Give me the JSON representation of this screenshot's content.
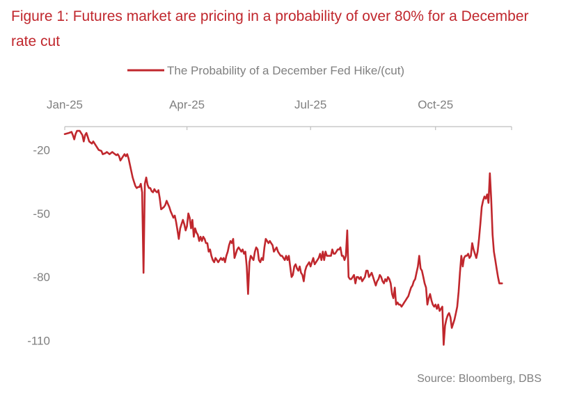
{
  "figure": {
    "title": "Figure 1: Futures market are pricing in a probability of over 80% for a December rate cut",
    "source": "Source: Bloomberg, DBS"
  },
  "colors": {
    "title": "#c0272d",
    "line": "#c0272d",
    "axis": "#bfbfbf",
    "label": "#7f7f7f"
  },
  "chart_data": {
    "type": "line",
    "title": "Figure 1: Futures market are pricing in a probability of over 80% for a December rate cut",
    "xlabel": "",
    "ylabel": "",
    "x_axis_position": "top",
    "x_ticks": [
      {
        "label": "Jan-25",
        "day": 0
      },
      {
        "label": "Apr-25",
        "day": 90
      },
      {
        "label": "Jul-25",
        "day": 181
      },
      {
        "label": "Oct-25",
        "day": 273
      }
    ],
    "xlim": [
      0,
      329
    ],
    "y_ticks": [
      -20,
      -50,
      -80,
      -110
    ],
    "ylim": [
      -120,
      -9
    ],
    "grid": false,
    "legend": "top-center",
    "series": [
      {
        "name": "The Probability of a December Fed Hike/(cut)",
        "points": [
          [
            0,
            -12.5
          ],
          [
            3,
            -12
          ],
          [
            5,
            -11.5
          ],
          [
            6,
            -13
          ],
          [
            7,
            -15
          ],
          [
            8,
            -12.5
          ],
          [
            9,
            -11
          ],
          [
            11,
            -11
          ],
          [
            13,
            -13
          ],
          [
            14,
            -16
          ],
          [
            15,
            -13
          ],
          [
            16,
            -12
          ],
          [
            17,
            -14
          ],
          [
            18,
            -16
          ],
          [
            20,
            -17
          ],
          [
            21,
            -16
          ],
          [
            23,
            -18
          ],
          [
            25,
            -20
          ],
          [
            27,
            -20.5
          ],
          [
            28,
            -22
          ],
          [
            30,
            -21.5
          ],
          [
            31,
            -21
          ],
          [
            33,
            -22
          ],
          [
            35,
            -21
          ],
          [
            37,
            -22
          ],
          [
            38,
            -22.5
          ],
          [
            39,
            -22
          ],
          [
            40,
            -23
          ],
          [
            41,
            -25
          ],
          [
            43,
            -23
          ],
          [
            44,
            -22
          ],
          [
            45,
            -23
          ],
          [
            46,
            -22
          ],
          [
            47,
            -24
          ],
          [
            49,
            -30
          ],
          [
            50,
            -33
          ],
          [
            51,
            -35
          ],
          [
            52,
            -37
          ],
          [
            53,
            -38
          ],
          [
            54,
            -37.5
          ],
          [
            55,
            -37.5
          ],
          [
            56,
            -36
          ],
          [
            57,
            -40
          ],
          [
            58,
            -78
          ],
          [
            59,
            -36
          ],
          [
            60,
            -33
          ],
          [
            61,
            -36.5
          ],
          [
            62,
            -38
          ],
          [
            63,
            -38
          ],
          [
            64,
            -39.5
          ],
          [
            65,
            -40
          ],
          [
            66,
            -38.5
          ],
          [
            67,
            -39.5
          ],
          [
            68,
            -40
          ],
          [
            69,
            -39
          ],
          [
            70,
            -43
          ],
          [
            71,
            -48
          ],
          [
            72,
            -47.5
          ],
          [
            73,
            -47
          ],
          [
            74,
            -46
          ],
          [
            75,
            -44
          ],
          [
            76,
            -45.5
          ],
          [
            77,
            -47
          ],
          [
            78,
            -49
          ],
          [
            79,
            -50.5
          ],
          [
            80,
            -52
          ],
          [
            81,
            -51
          ],
          [
            82,
            -54
          ],
          [
            83,
            -58
          ],
          [
            84,
            -62
          ],
          [
            85,
            -57
          ],
          [
            86,
            -55
          ],
          [
            87,
            -53
          ],
          [
            88,
            -55
          ],
          [
            89,
            -58
          ],
          [
            90,
            -56
          ],
          [
            91,
            -50
          ],
          [
            92,
            -52
          ],
          [
            93,
            -57
          ],
          [
            94,
            -53
          ],
          [
            95,
            -61
          ],
          [
            96,
            -57
          ],
          [
            97,
            -59
          ],
          [
            98,
            -60
          ],
          [
            99,
            -63
          ],
          [
            100,
            -61
          ],
          [
            101,
            -63
          ],
          [
            102,
            -61
          ],
          [
            103,
            -62
          ],
          [
            104,
            -64
          ],
          [
            105,
            -64
          ],
          [
            106,
            -68
          ],
          [
            107,
            -67
          ],
          [
            108,
            -70
          ],
          [
            109,
            -72
          ],
          [
            110,
            -73
          ],
          [
            111,
            -71
          ],
          [
            112,
            -72
          ],
          [
            113,
            -73
          ],
          [
            114,
            -72
          ],
          [
            115,
            -71
          ],
          [
            116,
            -72
          ],
          [
            117,
            -71
          ],
          [
            118,
            -73
          ],
          [
            119,
            -70
          ],
          [
            120,
            -68
          ],
          [
            121,
            -65
          ],
          [
            122,
            -63
          ],
          [
            123,
            -64
          ],
          [
            124,
            -62
          ],
          [
            125,
            -71
          ],
          [
            126,
            -69
          ],
          [
            127,
            -67
          ],
          [
            128,
            -66
          ],
          [
            129,
            -67
          ],
          [
            130,
            -68
          ],
          [
            131,
            -67
          ],
          [
            132,
            -69
          ],
          [
            133,
            -68
          ],
          [
            134,
            -75
          ],
          [
            135,
            -88
          ],
          [
            136,
            -73
          ],
          [
            137,
            -70
          ],
          [
            138,
            -71
          ],
          [
            139,
            -72
          ],
          [
            140,
            -68
          ],
          [
            141,
            -66
          ],
          [
            142,
            -67
          ],
          [
            143,
            -72
          ],
          [
            144,
            -73
          ],
          [
            145,
            -71
          ],
          [
            146,
            -72
          ],
          [
            147,
            -66
          ],
          [
            148,
            -62
          ],
          [
            149,
            -63
          ],
          [
            150,
            -64
          ],
          [
            151,
            -63
          ],
          [
            152,
            -64
          ],
          [
            153,
            -65
          ],
          [
            154,
            -68
          ],
          [
            155,
            -67
          ],
          [
            156,
            -66
          ],
          [
            157,
            -68
          ],
          [
            158,
            -69
          ],
          [
            159,
            -70
          ],
          [
            160,
            -70
          ],
          [
            161,
            -71
          ],
          [
            162,
            -72
          ],
          [
            163,
            -70
          ],
          [
            164,
            -72
          ],
          [
            165,
            -70
          ],
          [
            166,
            -75
          ],
          [
            167,
            -80
          ],
          [
            168,
            -79
          ],
          [
            169,
            -75
          ],
          [
            170,
            -74
          ],
          [
            171,
            -76
          ],
          [
            172,
            -77
          ],
          [
            173,
            -75
          ],
          [
            174,
            -78
          ],
          [
            175,
            -79
          ],
          [
            176,
            -82
          ],
          [
            177,
            -77
          ],
          [
            178,
            -75
          ],
          [
            179,
            -74
          ],
          [
            180,
            -73
          ],
          [
            181,
            -75
          ],
          [
            182,
            -73
          ],
          [
            183,
            -71
          ],
          [
            184,
            -74
          ],
          [
            185,
            -73
          ],
          [
            186,
            -72
          ],
          [
            187,
            -71
          ],
          [
            188,
            -69
          ],
          [
            189,
            -72
          ],
          [
            190,
            -68
          ],
          [
            191,
            -72
          ],
          [
            192,
            -68
          ],
          [
            193,
            -70
          ],
          [
            194,
            -70
          ],
          [
            195,
            -70
          ],
          [
            196,
            -70
          ],
          [
            197,
            -67
          ],
          [
            198,
            -69
          ],
          [
            199,
            -69
          ],
          [
            200,
            -68
          ],
          [
            201,
            -67
          ],
          [
            202,
            -67
          ],
          [
            203,
            -66
          ],
          [
            204,
            -70
          ],
          [
            205,
            -70
          ],
          [
            206,
            -72
          ],
          [
            207,
            -70
          ],
          [
            208,
            -58
          ],
          [
            209,
            -80
          ],
          [
            210,
            -81
          ],
          [
            211,
            -81
          ],
          [
            212,
            -80
          ],
          [
            213,
            -79
          ],
          [
            214,
            -83
          ],
          [
            215,
            -80
          ],
          [
            216,
            -80
          ],
          [
            217,
            -81
          ],
          [
            218,
            -80
          ],
          [
            219,
            -82
          ],
          [
            220,
            -81
          ],
          [
            221,
            -80
          ],
          [
            222,
            -77
          ],
          [
            223,
            -77
          ],
          [
            224,
            -80
          ],
          [
            225,
            -79
          ],
          [
            226,
            -78
          ],
          [
            227,
            -80
          ],
          [
            228,
            -82
          ],
          [
            229,
            -84
          ],
          [
            230,
            -82
          ],
          [
            231,
            -81
          ],
          [
            232,
            -79
          ],
          [
            233,
            -80
          ],
          [
            234,
            -82
          ],
          [
            235,
            -83
          ],
          [
            236,
            -81
          ],
          [
            237,
            -82
          ],
          [
            238,
            -80
          ],
          [
            239,
            -81
          ],
          [
            240,
            -83
          ],
          [
            241,
            -88
          ],
          [
            242,
            -90
          ],
          [
            243,
            -85
          ],
          [
            244,
            -93
          ],
          [
            245,
            -92
          ],
          [
            246,
            -93
          ],
          [
            247,
            -93
          ],
          [
            248,
            -94
          ],
          [
            249,
            -93
          ],
          [
            250,
            -92
          ],
          [
            251,
            -91
          ],
          [
            252,
            -90
          ],
          [
            253,
            -89
          ],
          [
            254,
            -87
          ],
          [
            255,
            -85
          ],
          [
            256,
            -84
          ],
          [
            257,
            -82
          ],
          [
            258,
            -81
          ],
          [
            259,
            -78
          ],
          [
            260,
            -75
          ],
          [
            261,
            -70
          ],
          [
            262,
            -76
          ],
          [
            263,
            -77
          ],
          [
            264,
            -80
          ],
          [
            265,
            -83
          ],
          [
            266,
            -85
          ],
          [
            267,
            -93
          ],
          [
            268,
            -90
          ],
          [
            269,
            -88
          ],
          [
            270,
            -91
          ],
          [
            271,
            -93
          ],
          [
            272,
            -94
          ],
          [
            273,
            -93
          ],
          [
            274,
            -95
          ],
          [
            275,
            -93
          ],
          [
            276,
            -96
          ],
          [
            277,
            -95
          ],
          [
            278,
            -94
          ],
          [
            279,
            -112
          ],
          [
            280,
            -103
          ],
          [
            281,
            -100
          ],
          [
            282,
            -98
          ],
          [
            283,
            -97
          ],
          [
            284,
            -99
          ],
          [
            285,
            -104
          ],
          [
            286,
            -102
          ],
          [
            287,
            -100
          ],
          [
            288,
            -97
          ],
          [
            289,
            -94
          ],
          [
            290,
            -87
          ],
          [
            291,
            -78
          ],
          [
            292,
            -70
          ],
          [
            293,
            -75
          ],
          [
            294,
            -71
          ],
          [
            295,
            -70
          ],
          [
            296,
            -70
          ],
          [
            297,
            -69
          ],
          [
            298,
            -71
          ],
          [
            299,
            -70
          ],
          [
            300,
            -64
          ],
          [
            301,
            -67
          ],
          [
            302,
            -69
          ],
          [
            303,
            -71
          ],
          [
            304,
            -68
          ],
          [
            305,
            -62
          ],
          [
            306,
            -55
          ],
          [
            307,
            -47
          ],
          [
            308,
            -44
          ],
          [
            309,
            -42
          ],
          [
            310,
            -43
          ],
          [
            311,
            -41
          ],
          [
            312,
            -45
          ],
          [
            313,
            -31
          ],
          [
            314,
            -43
          ],
          [
            315,
            -60
          ],
          [
            316,
            -68
          ],
          [
            317,
            -72
          ],
          [
            318,
            -76
          ],
          [
            319,
            -80
          ],
          [
            320,
            -83
          ],
          [
            322,
            -83
          ]
        ]
      }
    ]
  }
}
